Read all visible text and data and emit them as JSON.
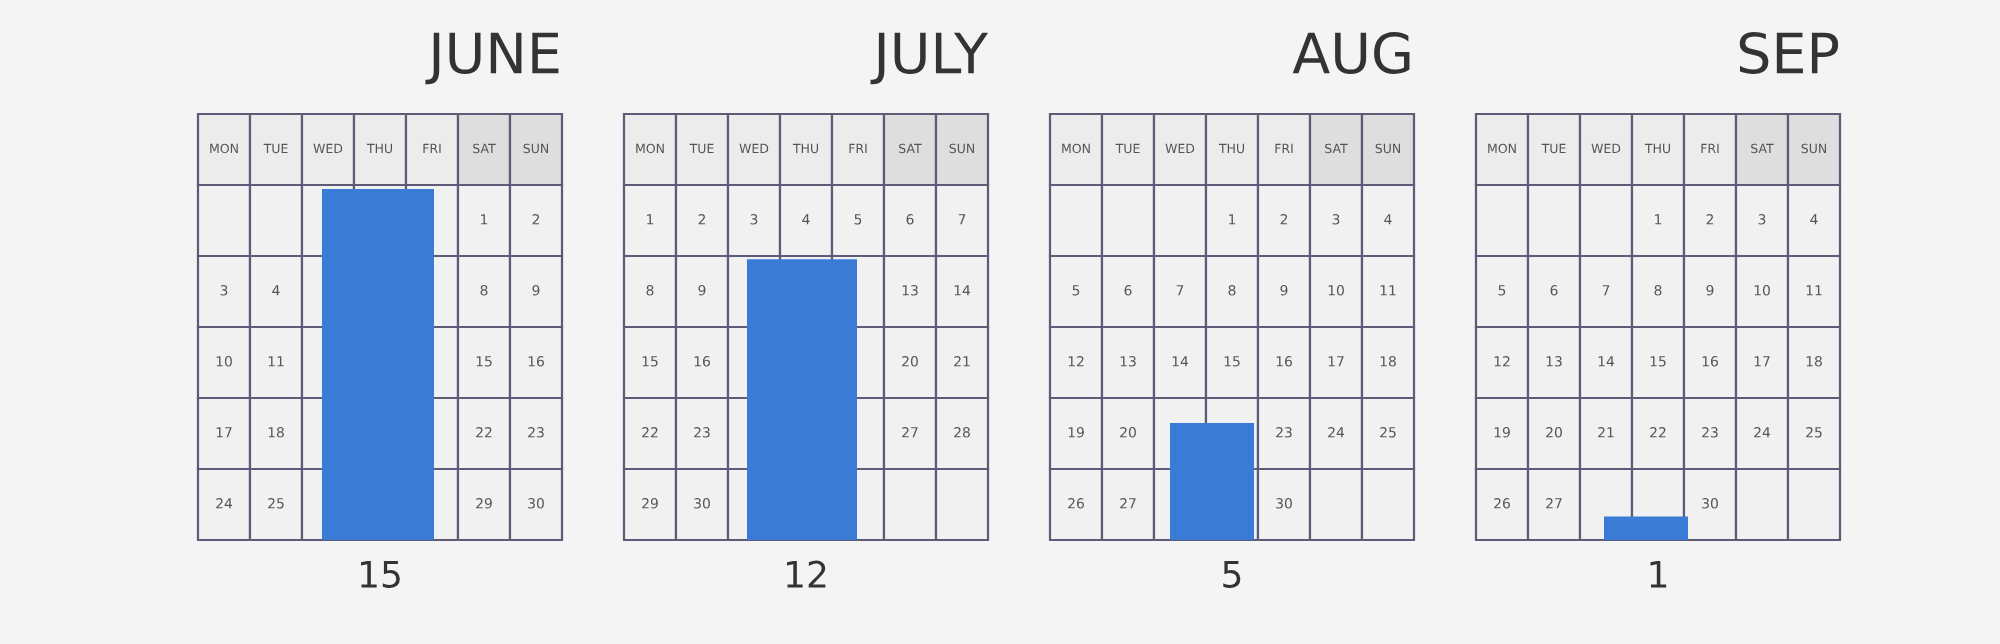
{
  "chart_data": {
    "type": "bar",
    "categories": [
      "JUNE",
      "JULY",
      "AUG",
      "SEP"
    ],
    "values": [
      15,
      12,
      5,
      1
    ],
    "color": "#3a7bd5",
    "data_labels": true,
    "annotations": [
      "MON",
      "TUE",
      "WED",
      "THU",
      "FRI",
      "SAT",
      "SUN",
      "1",
      "2",
      "3",
      "4",
      "5",
      "6",
      "7",
      "8",
      "9",
      "10",
      "11",
      "12",
      "13",
      "14",
      "15",
      "16",
      "17",
      "18",
      "19",
      "20",
      "21",
      "22",
      "23",
      "24",
      "25",
      "26",
      "27",
      "28",
      "29",
      "30"
    ]
  }
}
